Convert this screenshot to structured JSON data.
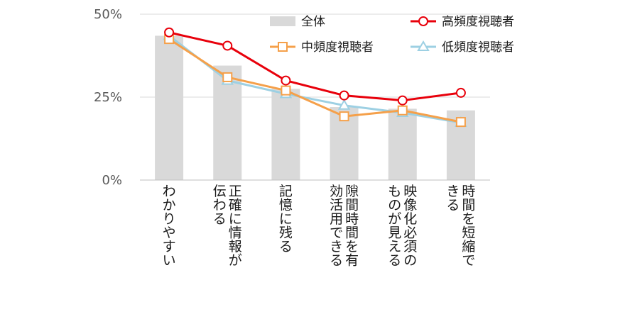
{
  "chart_data": {
    "type": "bar",
    "categories": [
      "わかりやすい",
      "正確に情報が伝わる",
      "記憶に残る",
      "隙間時間を有効活用できる",
      "映像化必須のものが見える",
      "時間を短縮できる"
    ],
    "ylim": [
      0,
      50
    ],
    "yticks": [
      "0%",
      "25%",
      "50%"
    ],
    "ytick_values": [
      0,
      25,
      50
    ],
    "grid": true,
    "legend_position": "top",
    "bars": {
      "name": "全体",
      "values": [
        43.5,
        34.5,
        27.5,
        22.0,
        21.5,
        21.0
      ],
      "color": "#d9d9d9"
    },
    "series": [
      {
        "name": "高頻度視聴者",
        "values": [
          44.5,
          40.5,
          30.0,
          25.5,
          24.0,
          26.3
        ],
        "color": "#e8000b",
        "marker": "circle"
      },
      {
        "name": "中頻度視聴者",
        "values": [
          42.5,
          31.0,
          27.0,
          19.2,
          21.0,
          17.5
        ],
        "color": "#f5a04a",
        "marker": "square"
      },
      {
        "name": "低頻度視聴者",
        "values": [
          43.5,
          30.0,
          26.0,
          22.5,
          20.3,
          17.3
        ],
        "color": "#9dd0e3",
        "marker": "triangle"
      }
    ]
  }
}
